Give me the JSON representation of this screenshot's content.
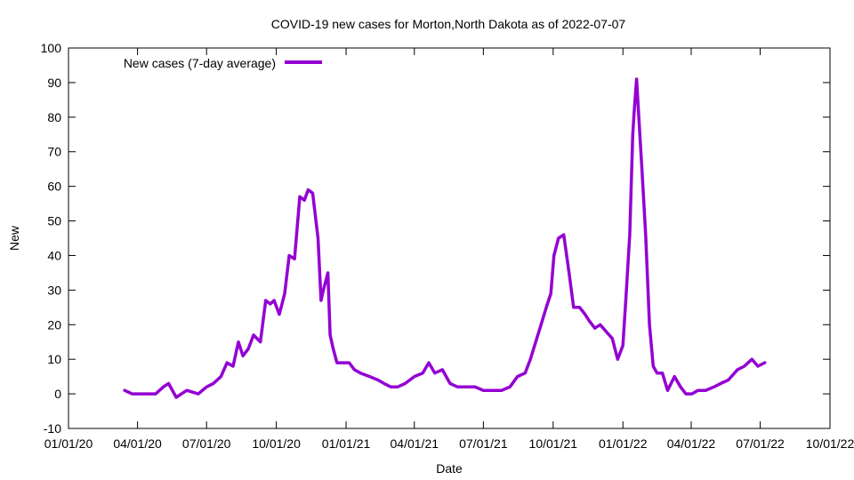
{
  "chart_data": {
    "type": "line",
    "title": "COVID-19 new cases for Morton,North Dakota as of 2022-07-07",
    "xlabel": "Date",
    "ylabel": "New",
    "legend_position": "top-left",
    "grid": false,
    "xlim": [
      "2020-01-01",
      "2022-10-01"
    ],
    "ylim": [
      -10,
      100
    ],
    "x_ticks": [
      {
        "date": "2020-01-01",
        "label": "01/01/20"
      },
      {
        "date": "2020-04-01",
        "label": "04/01/20"
      },
      {
        "date": "2020-07-01",
        "label": "07/01/20"
      },
      {
        "date": "2020-10-01",
        "label": "10/01/20"
      },
      {
        "date": "2021-01-01",
        "label": "01/01/21"
      },
      {
        "date": "2021-04-01",
        "label": "04/01/21"
      },
      {
        "date": "2021-07-01",
        "label": "07/01/21"
      },
      {
        "date": "2021-10-01",
        "label": "10/01/21"
      },
      {
        "date": "2022-01-01",
        "label": "01/01/22"
      },
      {
        "date": "2022-04-01",
        "label": "04/01/22"
      },
      {
        "date": "2022-07-01",
        "label": "07/01/22"
      },
      {
        "date": "2022-10-01",
        "label": "10/01/22"
      }
    ],
    "y_ticks": [
      -10,
      0,
      10,
      20,
      30,
      40,
      50,
      60,
      70,
      80,
      90,
      100
    ],
    "series": [
      {
        "name": "New cases (7-day average)",
        "color": "#9400d3",
        "x": [
          "2020-03-15",
          "2020-03-25",
          "2020-04-10",
          "2020-04-25",
          "2020-05-05",
          "2020-05-12",
          "2020-05-22",
          "2020-05-29",
          "2020-06-05",
          "2020-06-20",
          "2020-07-01",
          "2020-07-10",
          "2020-07-20",
          "2020-07-28",
          "2020-08-05",
          "2020-08-12",
          "2020-08-18",
          "2020-08-25",
          "2020-09-01",
          "2020-09-10",
          "2020-09-17",
          "2020-09-23",
          "2020-09-28",
          "2020-10-05",
          "2020-10-12",
          "2020-10-18",
          "2020-10-25",
          "2020-11-01",
          "2020-11-07",
          "2020-11-12",
          "2020-11-18",
          "2020-11-25",
          "2020-11-29",
          "2020-12-02",
          "2020-12-08",
          "2020-12-11",
          "2020-12-15",
          "2020-12-20",
          "2020-12-28",
          "2021-01-05",
          "2021-01-12",
          "2021-01-20",
          "2021-02-01",
          "2021-02-12",
          "2021-02-20",
          "2021-03-01",
          "2021-03-10",
          "2021-03-20",
          "2021-04-01",
          "2021-04-12",
          "2021-04-20",
          "2021-04-28",
          "2021-05-08",
          "2021-05-18",
          "2021-05-28",
          "2021-06-10",
          "2021-06-20",
          "2021-07-01",
          "2021-07-15",
          "2021-07-25",
          "2021-08-05",
          "2021-08-15",
          "2021-08-25",
          "2021-09-01",
          "2021-09-08",
          "2021-09-15",
          "2021-09-22",
          "2021-09-28",
          "2021-10-02",
          "2021-10-08",
          "2021-10-15",
          "2021-10-22",
          "2021-10-28",
          "2021-11-05",
          "2021-11-12",
          "2021-11-18",
          "2021-11-25",
          "2021-12-02",
          "2021-12-10",
          "2021-12-18",
          "2021-12-25",
          "2022-01-01",
          "2022-01-05",
          "2022-01-10",
          "2022-01-14",
          "2022-01-16",
          "2022-01-19",
          "2022-01-22",
          "2022-01-26",
          "2022-01-31",
          "2022-02-05",
          "2022-02-10",
          "2022-02-15",
          "2022-02-22",
          "2022-03-01",
          "2022-03-10",
          "2022-03-18",
          "2022-03-25",
          "2022-04-02",
          "2022-04-10",
          "2022-04-20",
          "2022-05-01",
          "2022-05-10",
          "2022-05-20",
          "2022-06-01",
          "2022-06-10",
          "2022-06-20",
          "2022-06-28",
          "2022-07-07"
        ],
        "y": [
          1,
          0,
          0,
          0,
          2,
          3,
          -1,
          0,
          1,
          0,
          2,
          3,
          5,
          9,
          8,
          15,
          11,
          13,
          17,
          15,
          27,
          26,
          27,
          23,
          29,
          40,
          39,
          57,
          56,
          59,
          58,
          45,
          27,
          30,
          35,
          17,
          13,
          9,
          9,
          9,
          7,
          6,
          5,
          4,
          3,
          2,
          2,
          3,
          5,
          6,
          9,
          6,
          7,
          3,
          2,
          2,
          2,
          1,
          1,
          1,
          2,
          5,
          6,
          10,
          15,
          20,
          25,
          29,
          40,
          45,
          46,
          35,
          25,
          25,
          23,
          21,
          19,
          20,
          18,
          16,
          10,
          14,
          28,
          46,
          75,
          82,
          91,
          80,
          65,
          46,
          20,
          8,
          6,
          6,
          1,
          5,
          2,
          0,
          0,
          1,
          1,
          2,
          3,
          4,
          7,
          8,
          10,
          8,
          9
        ]
      }
    ]
  }
}
